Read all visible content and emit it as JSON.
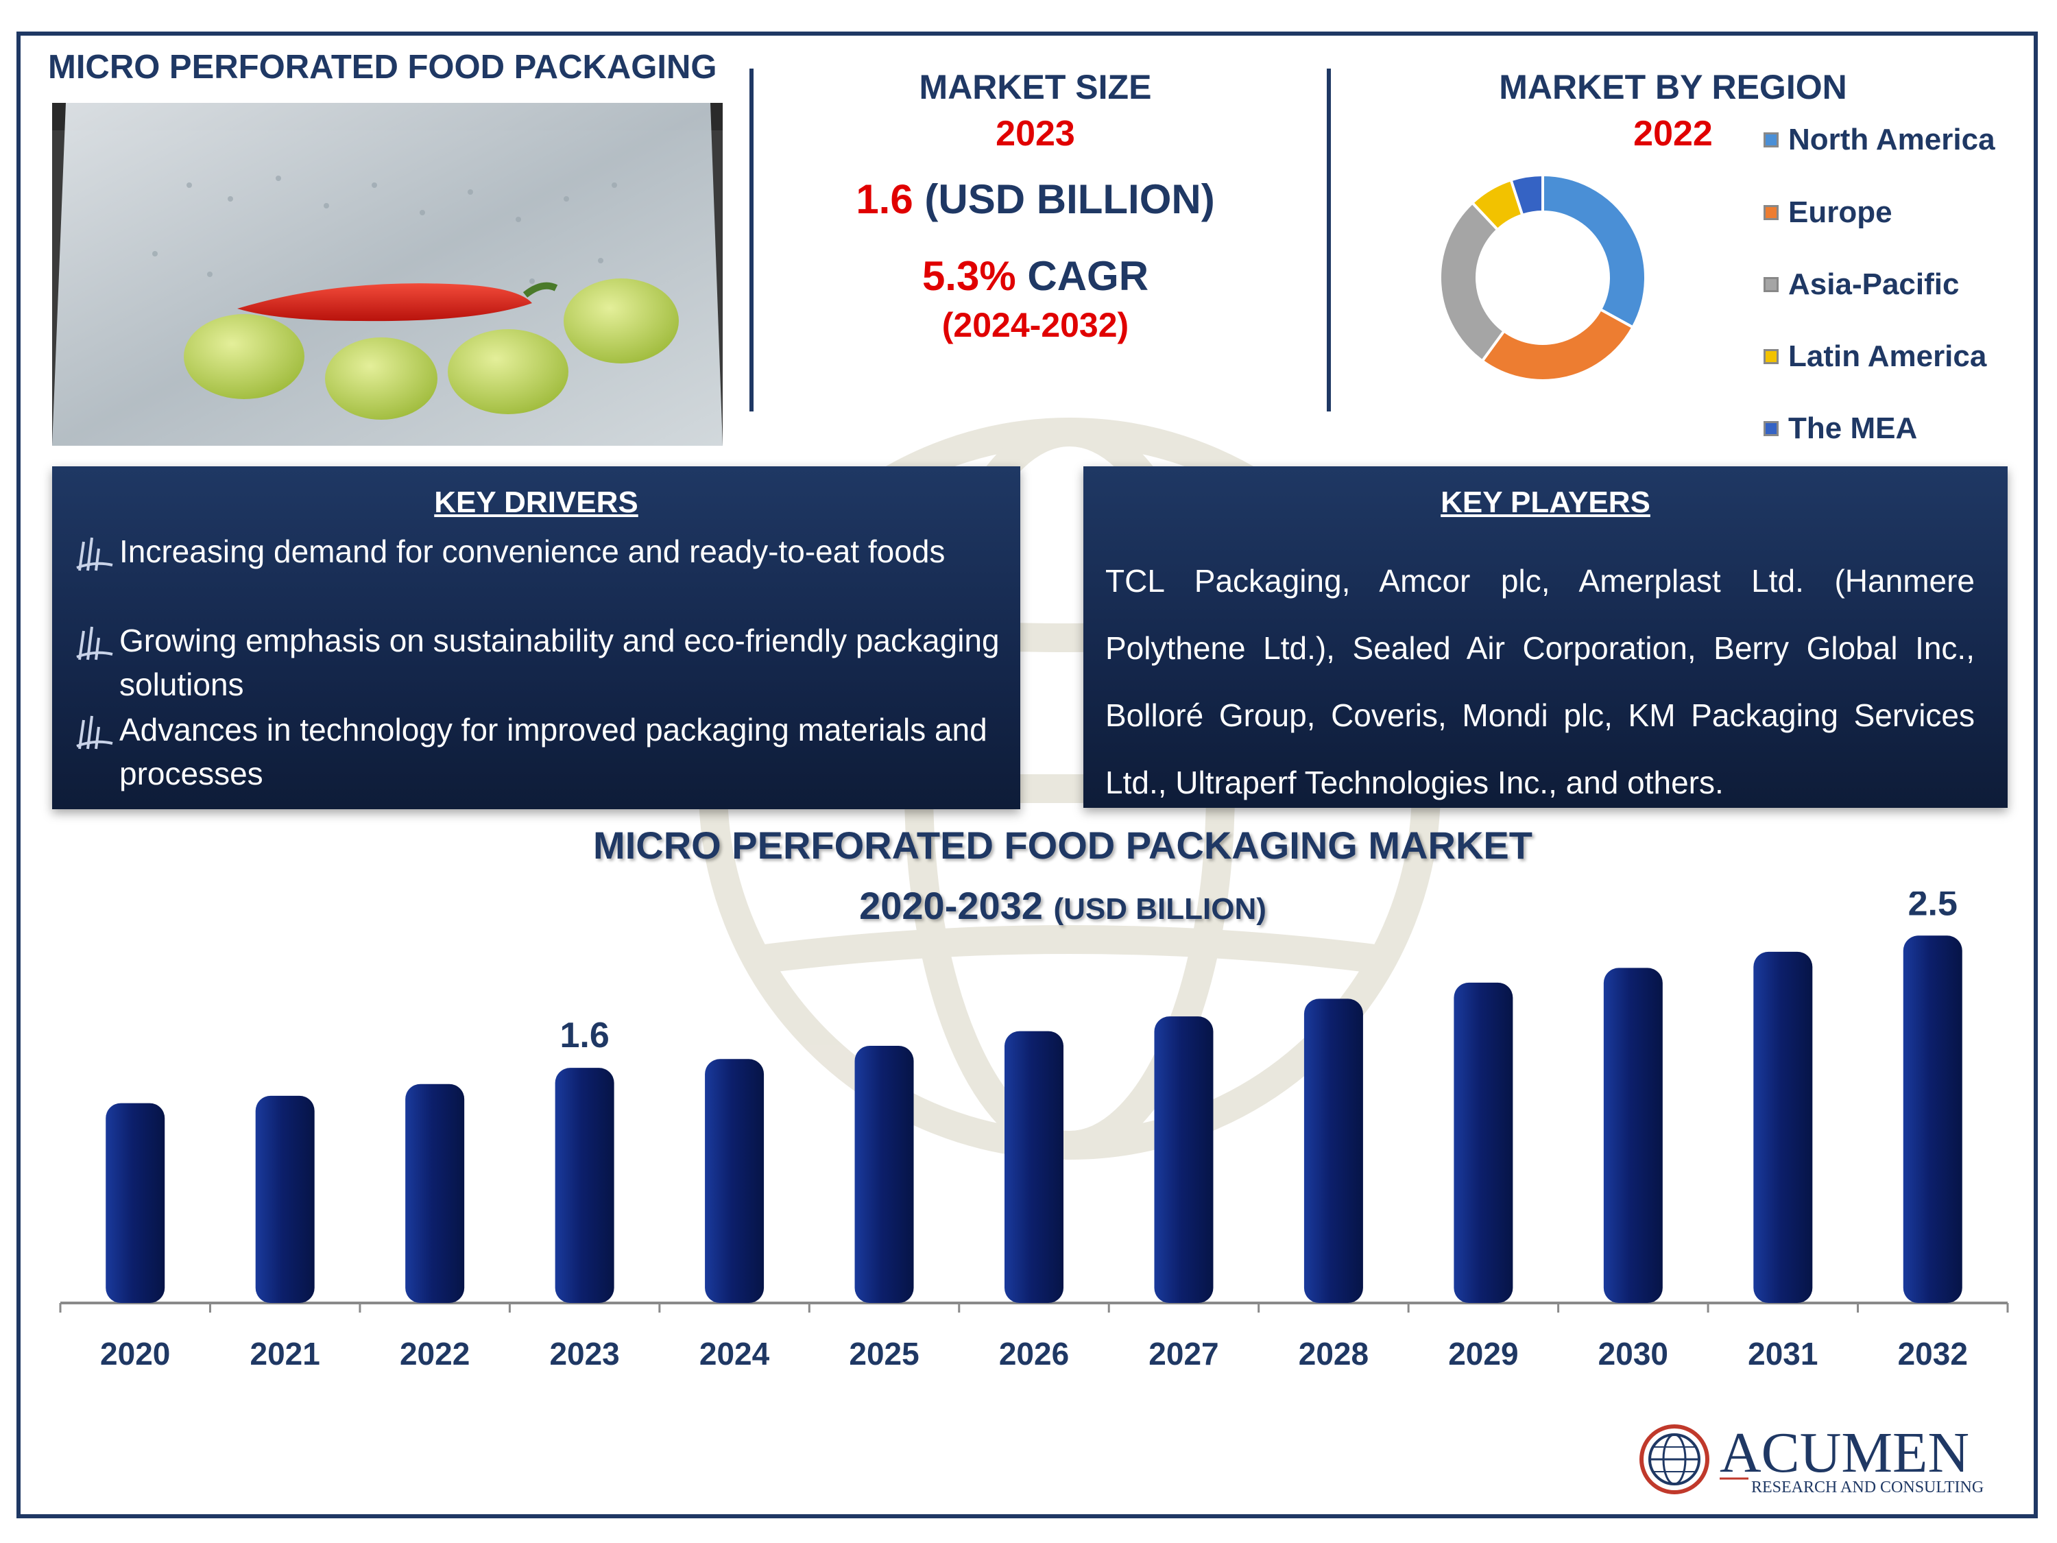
{
  "header": {
    "title": "MICRO PERFORATED FOOD PACKAGING"
  },
  "market_size": {
    "title": "MARKET SIZE",
    "year": "2023",
    "value": "1.6",
    "unit": "(USD BILLION)",
    "cagr_value": "5.3%",
    "cagr_label": "CAGR",
    "cagr_period": "(2024-2032)"
  },
  "region": {
    "title": "MARKET BY REGION",
    "year": "2022",
    "legend": [
      {
        "label": "North America",
        "color": "#4a8fd6"
      },
      {
        "label": "Europe",
        "color": "#ed7d31"
      },
      {
        "label": "Asia-Pacific",
        "color": "#a5a5a5"
      },
      {
        "label": "Latin America",
        "color": "#f2c200"
      },
      {
        "label": "The MEA",
        "color": "#3563c4"
      }
    ]
  },
  "key_drivers": {
    "title": "KEY DRIVERS",
    "items": [
      "Increasing demand for convenience and ready-to-eat foods",
      "Growing emphasis on sustainability and eco-friendly packaging solutions",
      "Advances in technology for improved packaging materials and processes"
    ]
  },
  "key_players": {
    "title": "KEY PLAYERS",
    "text": "TCL Packaging, Amcor plc, Amerplast Ltd. (Hanmere Polythene Ltd.), Sealed Air Corporation, Berry Global Inc., Bolloré Group, Coveris, Mondi plc, KM Packaging Services Ltd., Ultraperf Technologies Inc., and others."
  },
  "chart_title": {
    "line1": "MICRO PERFORATED FOOD PACKAGING MARKET",
    "line2_main": "2020-2032",
    "line2_unit": "(USD BILLION)"
  },
  "chart_data": [
    {
      "type": "bar",
      "title": "MICRO PERFORATED FOOD PACKAGING MARKET 2020-2032 (USD BILLION)",
      "categories": [
        "2020",
        "2021",
        "2022",
        "2023",
        "2024",
        "2025",
        "2026",
        "2027",
        "2028",
        "2029",
        "2030",
        "2031",
        "2032"
      ],
      "values": [
        1.36,
        1.41,
        1.49,
        1.6,
        1.66,
        1.75,
        1.85,
        1.95,
        2.07,
        2.18,
        2.28,
        2.39,
        2.5
      ],
      "data_labels": {
        "2023": "1.6",
        "2032": "2.5"
      },
      "ylim": [
        0,
        2.8
      ],
      "color": "#0c1f6b",
      "grid": false
    },
    {
      "type": "pie",
      "title": "MARKET BY REGION 2022",
      "donut": true,
      "categories": [
        "North America",
        "Europe",
        "Asia-Pacific",
        "Latin America",
        "The MEA"
      ],
      "values": [
        33,
        27,
        28,
        7,
        5
      ]
    }
  ],
  "logo": {
    "name": "ACUMEN",
    "tagline": "RESEARCH AND CONSULTING"
  }
}
